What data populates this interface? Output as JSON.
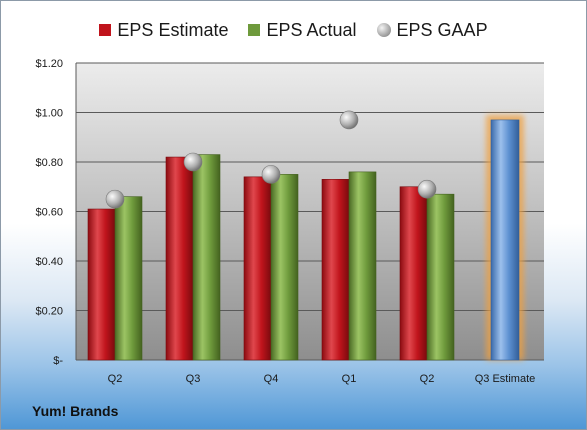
{
  "company": "Yum! Brands",
  "chart_data": {
    "type": "bar",
    "title": "",
    "xlabel": "",
    "ylabel": "",
    "categories": [
      "Q2",
      "Q3",
      "Q4",
      "Q1",
      "Q2",
      "Q3 Estimate"
    ],
    "ylim": [
      0,
      1.2
    ],
    "yticks": [
      0,
      0.2,
      0.4,
      0.6,
      0.8,
      1.0,
      1.2
    ],
    "ytick_labels": [
      "$-",
      "$0.20",
      "$0.40",
      "$0.60",
      "$0.80",
      "$1.00",
      "$1.20"
    ],
    "grid": true,
    "legend_position": "top",
    "series": [
      {
        "name": "EPS Estimate",
        "kind": "bar",
        "color": "#c0141c",
        "values": [
          0.61,
          0.82,
          0.74,
          0.73,
          0.7,
          null
        ]
      },
      {
        "name": "EPS Actual",
        "kind": "bar",
        "color": "#6e9a3c",
        "values": [
          0.66,
          0.83,
          0.75,
          0.76,
          0.67,
          null
        ]
      },
      {
        "name": "EPS GAAP",
        "kind": "marker",
        "color": "#a0a0a0",
        "values": [
          0.65,
          0.8,
          0.75,
          0.97,
          0.69,
          null
        ]
      },
      {
        "name": "",
        "kind": "bar-highlight",
        "color": "#5b8fd0",
        "glow": "#f0a040",
        "values": [
          null,
          null,
          null,
          null,
          null,
          0.97
        ]
      }
    ]
  }
}
